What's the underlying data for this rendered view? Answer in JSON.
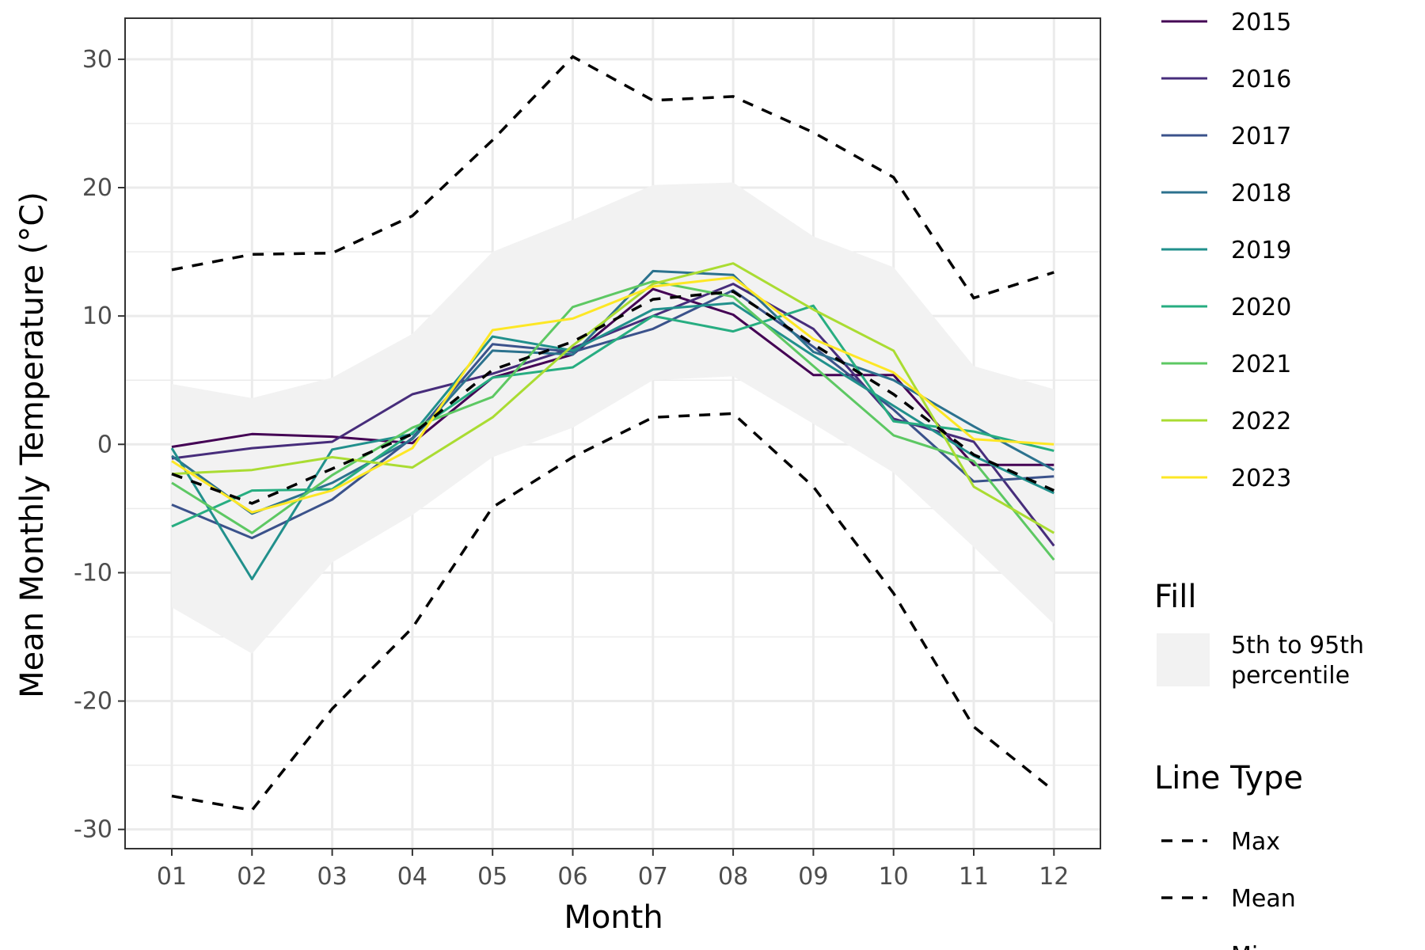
{
  "chart_data": {
    "type": "line",
    "xlabel": "Month",
    "ylabel": "Mean Monthly Temperature (°C)",
    "categories": [
      "01",
      "02",
      "03",
      "04",
      "05",
      "06",
      "07",
      "08",
      "09",
      "10",
      "11",
      "12"
    ],
    "yticks": [
      30,
      20,
      10,
      0,
      -10,
      -20,
      -30
    ],
    "ytick_labels": [
      "30",
      "20",
      "10",
      "0",
      "-10",
      "-20",
      "-30"
    ],
    "ylim": [
      -31.5,
      33.2
    ],
    "grid": true,
    "legend_position": "right",
    "band": {
      "name": "5th to 95th percentile",
      "lower": [
        -12.7,
        -16.3,
        -9.2,
        -5.5,
        -1.0,
        1.3,
        5.0,
        5.3,
        1.6,
        -2.2,
        -8.0,
        -14.0
      ],
      "upper": [
        4.7,
        3.6,
        5.2,
        8.6,
        15.0,
        17.5,
        20.2,
        20.4,
        16.2,
        13.8,
        6.1,
        4.3
      ],
      "color": "#f2f2f2"
    },
    "ref_lines": [
      {
        "name": "Max",
        "values": [
          13.6,
          14.8,
          14.9,
          17.8,
          23.7,
          30.2,
          26.8,
          27.1,
          24.3,
          20.8,
          11.4,
          13.4
        ]
      },
      {
        "name": "Mean",
        "values": [
          -2.3,
          -4.6,
          -1.9,
          0.8,
          5.8,
          8.0,
          11.3,
          11.9,
          7.8,
          3.9,
          -0.8,
          -3.6
        ]
      },
      {
        "name": "Min",
        "values": [
          -27.4,
          -28.5,
          -20.6,
          -14.3,
          -4.9,
          -1.0,
          2.1,
          2.4,
          -3.3,
          -11.6,
          -22.0,
          -27.0
        ]
      }
    ],
    "series": [
      {
        "name": "2015",
        "color": "#440154",
        "values": [
          -0.2,
          0.8,
          0.6,
          0.1,
          5.2,
          7.0,
          12.1,
          10.1,
          5.4,
          5.4,
          -1.6,
          -1.6
        ]
      },
      {
        "name": "2016",
        "color": "#472D7B",
        "values": [
          -1.1,
          -0.3,
          0.2,
          3.9,
          5.5,
          7.5,
          10.0,
          12.5,
          9.0,
          2.0,
          0.2,
          -7.9
        ]
      },
      {
        "name": "2017",
        "color": "#3B528B",
        "values": [
          -4.7,
          -7.3,
          -4.3,
          0.5,
          7.8,
          7.2,
          9.0,
          12.0,
          7.6,
          2.7,
          -2.9,
          -2.5
        ]
      },
      {
        "name": "2018",
        "color": "#2C728E",
        "values": [
          -0.9,
          -5.4,
          -3.0,
          0.4,
          7.3,
          7.0,
          13.5,
          13.2,
          7.2,
          5.0,
          1.4,
          -2.0
        ]
      },
      {
        "name": "2019",
        "color": "#21908C",
        "values": [
          -0.3,
          -10.5,
          -0.4,
          0.8,
          8.4,
          7.3,
          10.5,
          11.0,
          6.9,
          3.0,
          -0.9,
          -3.8
        ]
      },
      {
        "name": "2020",
        "color": "#27AD81",
        "values": [
          -6.4,
          -3.6,
          -3.5,
          0.9,
          5.2,
          6.0,
          10.0,
          8.8,
          10.8,
          1.8,
          1.0,
          -0.5
        ]
      },
      {
        "name": "2021",
        "color": "#5DC863",
        "values": [
          -3.0,
          -6.9,
          -2.4,
          1.3,
          3.7,
          10.7,
          12.7,
          11.5,
          6.1,
          0.7,
          -1.3,
          -9.0
        ]
      },
      {
        "name": "2022",
        "color": "#AADC32",
        "values": [
          -2.3,
          -2.0,
          -1.0,
          -1.8,
          2.1,
          7.7,
          12.5,
          14.1,
          10.5,
          7.3,
          -3.3,
          -6.9
        ]
      },
      {
        "name": "2023",
        "color": "#FDE725",
        "values": [
          -1.3,
          -5.3,
          -3.6,
          -0.3,
          8.9,
          9.8,
          12.3,
          13.0,
          8.2,
          5.6,
          0.4,
          0.0
        ]
      }
    ]
  },
  "legend": {
    "fill_title": "Fill",
    "fill_label_line1": "5th to 95th",
    "fill_label_line2": "percentile",
    "linetype_title": "Line Type",
    "linetype_labels": [
      "Max",
      "Mean",
      "Min"
    ]
  }
}
